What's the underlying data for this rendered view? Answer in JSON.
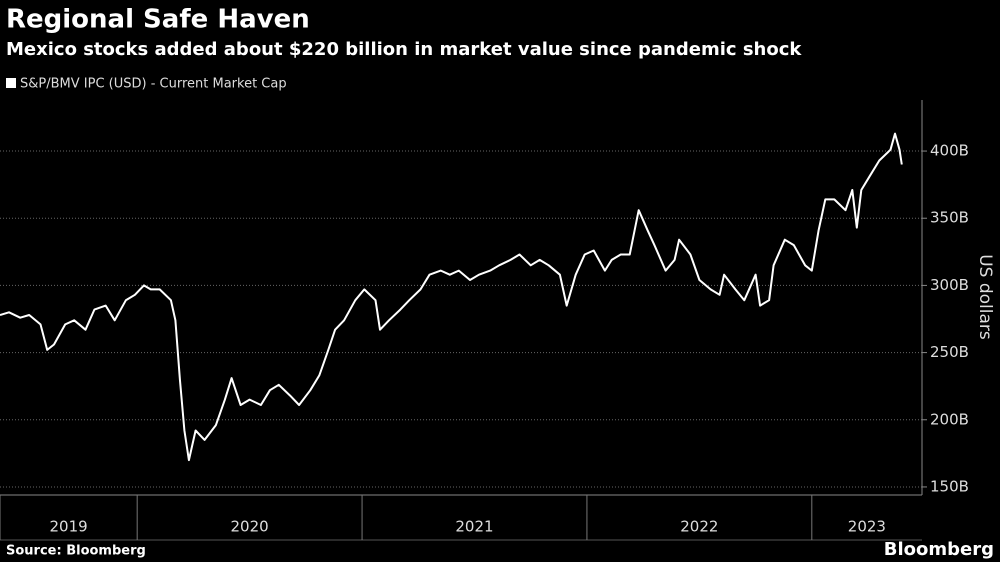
{
  "chart_data": {
    "type": "line",
    "title": "Regional Safe Haven",
    "subtitle": "Mexico stocks added about $220 billion in market value since pandemic shock",
    "y_label": "US dollars",
    "source": "Source: Bloomberg",
    "brand": "Bloomberg",
    "grid": true,
    "xlim": [
      2019.39,
      2023.49
    ],
    "xticks": [
      {
        "value": 2019.39,
        "label": "2019"
      },
      2020,
      2021,
      2022,
      2023
    ],
    "ylim": [
      144,
      438
    ],
    "yticks": [
      {
        "value": 150,
        "label": "150B"
      },
      {
        "value": 200,
        "label": "200B"
      },
      {
        "value": 250,
        "label": "250B"
      },
      {
        "value": 300,
        "label": "300B"
      },
      {
        "value": 350,
        "label": "350B"
      },
      {
        "value": 400,
        "label": "400B"
      }
    ],
    "x": [
      2019.39,
      2019.43,
      2019.48,
      2019.52,
      2019.57,
      2019.6,
      2019.63,
      2019.68,
      2019.72,
      2019.77,
      2019.81,
      2019.86,
      2019.9,
      2019.95,
      2019.99,
      2020.03,
      2020.06,
      2020.1,
      2020.15,
      2020.17,
      2020.19,
      2020.21,
      2020.23,
      2020.26,
      2020.3,
      2020.35,
      2020.39,
      2020.42,
      2020.46,
      2020.5,
      2020.55,
      2020.59,
      2020.63,
      2020.68,
      2020.72,
      2020.77,
      2020.81,
      2020.85,
      2020.88,
      2020.92,
      2020.97,
      2021.01,
      2021.06,
      2021.08,
      2021.12,
      2021.17,
      2021.21,
      2021.26,
      2021.3,
      2021.35,
      2021.39,
      2021.43,
      2021.48,
      2021.52,
      2021.57,
      2021.61,
      2021.66,
      2021.7,
      2021.75,
      2021.79,
      2021.83,
      2021.88,
      2021.91,
      2021.95,
      2021.99,
      2022.03,
      2022.08,
      2022.11,
      2022.15,
      2022.19,
      2022.23,
      2022.27,
      2022.3,
      2022.35,
      2022.39,
      2022.41,
      2022.46,
      2022.5,
      2022.55,
      2022.59,
      2022.61,
      2022.66,
      2022.7,
      2022.75,
      2022.77,
      2022.81,
      2022.83,
      2022.88,
      2022.92,
      2022.97,
      2023.0,
      2023.03,
      2023.06,
      2023.1,
      2023.15,
      2023.18,
      2023.2,
      2023.22,
      2023.26,
      2023.3,
      2023.35,
      2023.37,
      2023.39,
      2023.4
    ],
    "series": [
      {
        "name": "S&P/BMV IPC (USD) - Current Market Cap",
        "color": "#ffffff",
        "values": [
          278,
          280,
          276,
          278,
          271,
          252,
          256,
          271,
          274,
          267,
          282,
          285,
          274,
          289,
          293,
          300,
          297,
          297,
          289,
          274,
          230,
          192,
          170,
          192,
          185,
          196,
          215,
          231,
          211,
          215,
          211,
          222,
          226,
          218,
          211,
          222,
          233,
          252,
          267,
          274,
          289,
          297,
          289,
          267,
          274,
          282,
          289,
          297,
          308,
          311,
          308,
          311,
          304,
          308,
          311,
          315,
          319,
          323,
          315,
          319,
          315,
          308,
          285,
          308,
          323,
          326,
          311,
          319,
          323,
          323,
          356,
          341,
          330,
          311,
          319,
          334,
          323,
          304,
          297,
          293,
          308,
          297,
          289,
          308,
          285,
          289,
          315,
          334,
          330,
          315,
          311,
          341,
          364,
          364,
          356,
          371,
          343,
          371,
          382,
          393,
          401,
          413,
          401,
          390
        ]
      }
    ]
  }
}
